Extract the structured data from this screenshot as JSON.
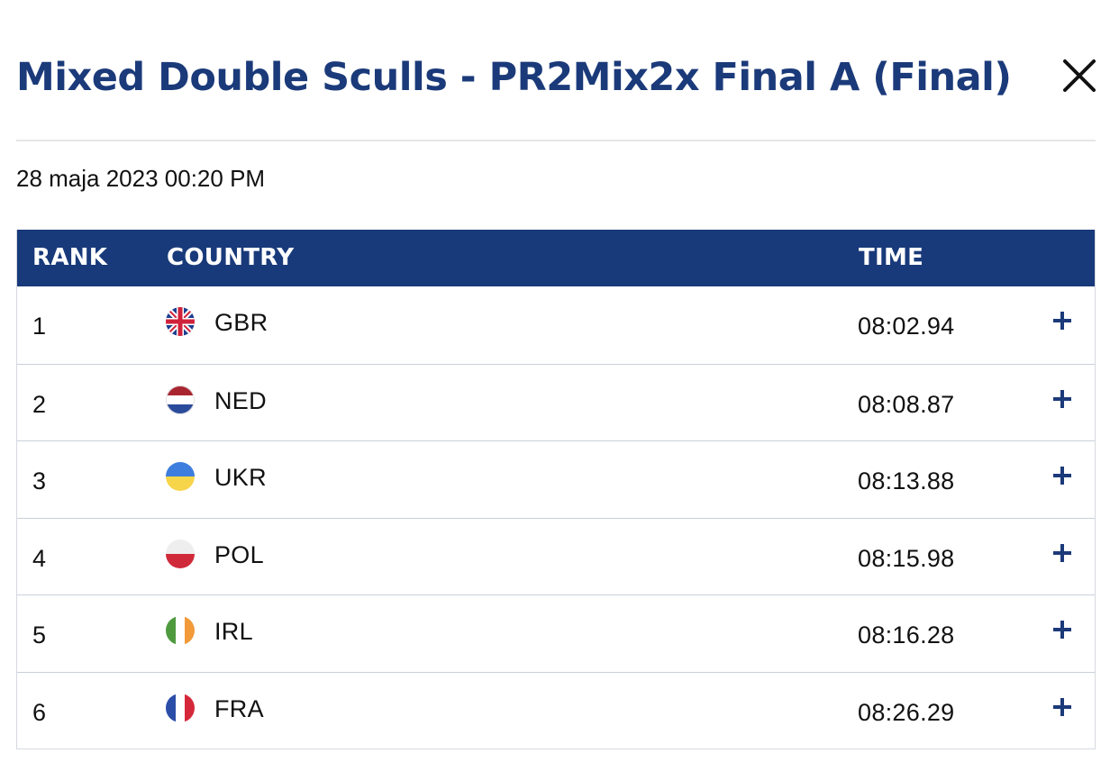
{
  "modal": {
    "title": "Mixed Double Sculls - PR2Mix2x Final A (Final)",
    "close_icon": "close-icon",
    "date": "28 maja 2023 00:20 PM"
  },
  "table": {
    "headers": {
      "rank": "RANK",
      "country": "COUNTRY",
      "time": "TIME"
    },
    "header_color": "#193a7a",
    "rows": [
      {
        "rank": "1",
        "code": "GBR",
        "flag": "gbr-flag-icon",
        "time": "08:02.94"
      },
      {
        "rank": "2",
        "code": "NED",
        "flag": "ned-flag-icon",
        "time": "08:08.87"
      },
      {
        "rank": "3",
        "code": "UKR",
        "flag": "ukr-flag-icon",
        "time": "08:13.88"
      },
      {
        "rank": "4",
        "code": "POL",
        "flag": "pol-flag-icon",
        "time": "08:15.98"
      },
      {
        "rank": "5",
        "code": "IRL",
        "flag": "irl-flag-icon",
        "time": "08:16.28"
      },
      {
        "rank": "6",
        "code": "FRA",
        "flag": "fra-flag-icon",
        "time": "08:26.29"
      }
    ],
    "expand_icon": "plus-icon"
  },
  "colors": {
    "title": "#1b3a7a",
    "accent": "#193a7a"
  }
}
